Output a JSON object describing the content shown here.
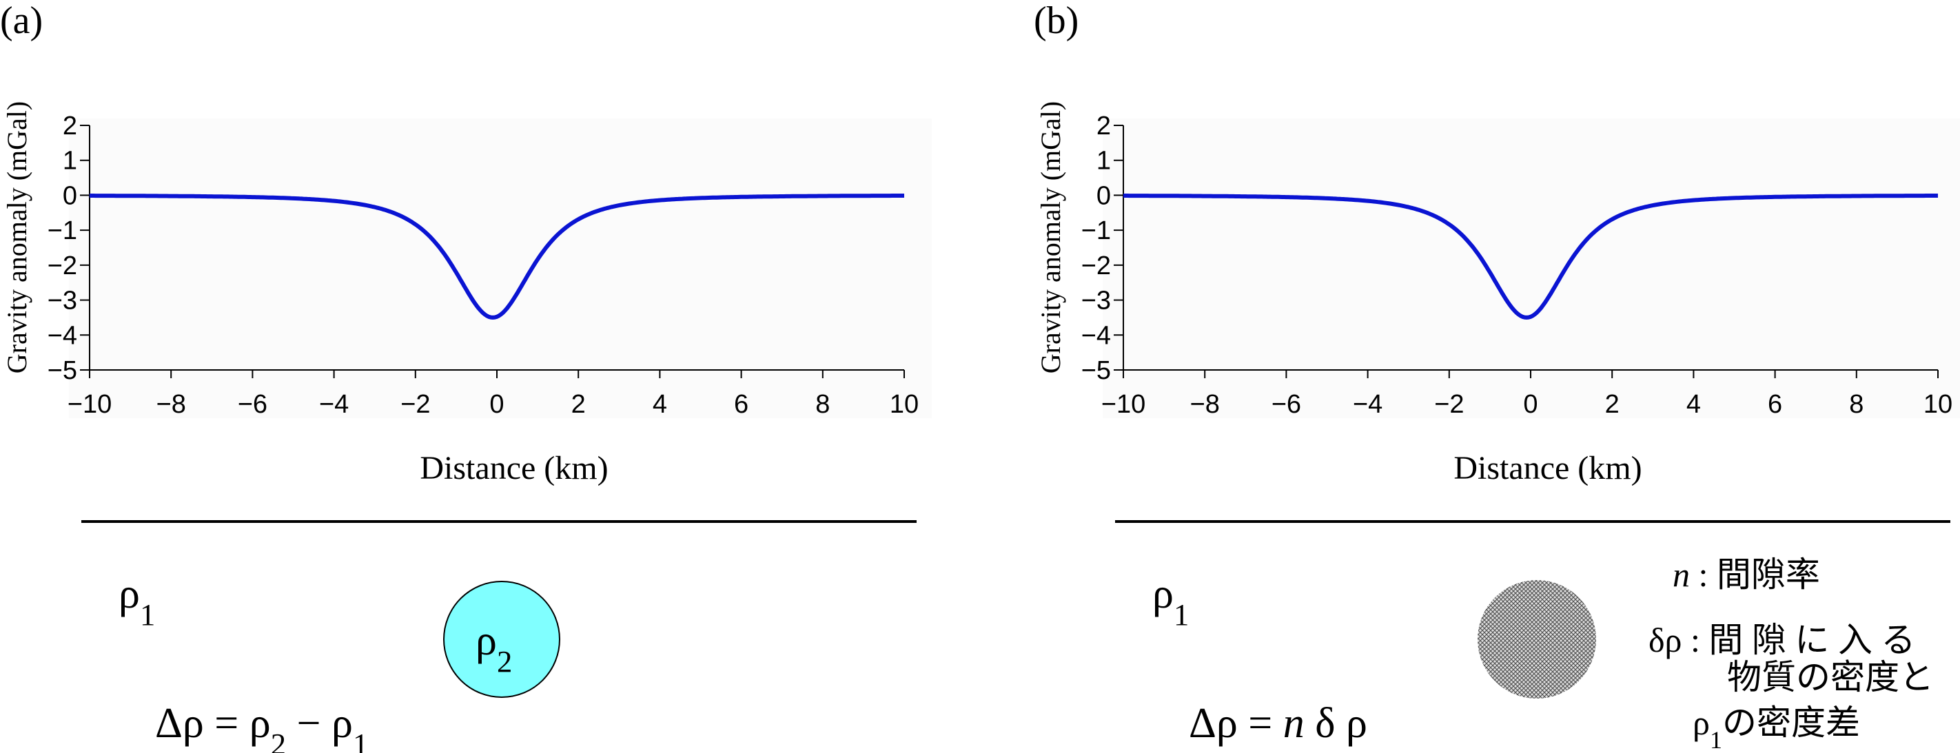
{
  "colors": {
    "curve": "#0a14d2",
    "sphere_fill": "#80ffff",
    "sphere_stroke": "#000000",
    "porous_fill": "#bdbdbd",
    "porous_pattern": "#555555"
  },
  "panels": [
    {
      "label": "(a)",
      "chart_data": {
        "type": "line",
        "xlabel": "Distance (km)",
        "ylabel": "Gravity anomaly (mGal)",
        "xlim": [
          -10,
          10
        ],
        "ylim": [
          -5,
          2
        ],
        "xticks": [
          -10,
          -8,
          -6,
          -4,
          -2,
          0,
          2,
          4,
          6,
          8,
          10
        ],
        "xtick_labels": [
          "−10",
          "−8",
          "−6",
          "−4",
          "−2",
          "0",
          "2",
          "4",
          "6",
          "8",
          "10"
        ],
        "yticks": [
          2,
          1,
          0,
          -1,
          -2,
          -3,
          -4,
          -5
        ],
        "ytick_labels": [
          "2",
          "1",
          "0",
          "−1",
          "−2",
          "−3",
          "−4",
          "−5"
        ],
        "grid": false,
        "curve": {
          "model": "buried_sphere",
          "peak_x": -0.1,
          "peak_value": -3.5,
          "depth_km": 1.5
        }
      },
      "diagram": {
        "rho1_base": "ρ",
        "rho1_sub": "1",
        "sphere_base": "ρ",
        "sphere_sub": "2",
        "sphere_style": "solid",
        "formula": [
          {
            "t": "Δρ = ρ"
          },
          {
            "t": "2",
            "sub": true
          },
          {
            "t": " − ρ"
          },
          {
            "t": "1",
            "sub": true
          }
        ]
      }
    },
    {
      "label": "(b)",
      "chart_data": {
        "type": "line",
        "xlabel": "Distance (km)",
        "ylabel": "Gravity anomaly (mGal)",
        "xlim": [
          -10,
          10
        ],
        "ylim": [
          -5,
          2
        ],
        "xticks": [
          -10,
          -8,
          -6,
          -4,
          -2,
          0,
          2,
          4,
          6,
          8,
          10
        ],
        "xtick_labels": [
          "−10",
          "−8",
          "−6",
          "−4",
          "−2",
          "0",
          "2",
          "4",
          "6",
          "8",
          "10"
        ],
        "yticks": [
          2,
          1,
          0,
          -1,
          -2,
          -3,
          -4,
          -5
        ],
        "ytick_labels": [
          "2",
          "1",
          "0",
          "−1",
          "−2",
          "−3",
          "−4",
          "−5"
        ],
        "grid": false,
        "curve": {
          "model": "buried_sphere",
          "peak_x": -0.1,
          "peak_value": -3.5,
          "depth_km": 1.5
        }
      },
      "diagram": {
        "rho1_base": "ρ",
        "rho1_sub": "1",
        "sphere_style": "porous",
        "formula": [
          {
            "t": "Δρ = "
          },
          {
            "t": "n",
            "italic": true
          },
          {
            "t": " δ ρ"
          }
        ],
        "legend": [
          [
            {
              "t": "n",
              "italic": true
            },
            {
              "t": " : 間隙率"
            }
          ],
          [
            {
              "t": "δρ : 間 隙 に 入 る"
            }
          ],
          [
            {
              "t": "物質の密度と"
            }
          ],
          [
            {
              "t": "ρ"
            },
            {
              "t": "1",
              "sub": true
            },
            {
              "t": "の密度差"
            }
          ]
        ]
      }
    }
  ]
}
